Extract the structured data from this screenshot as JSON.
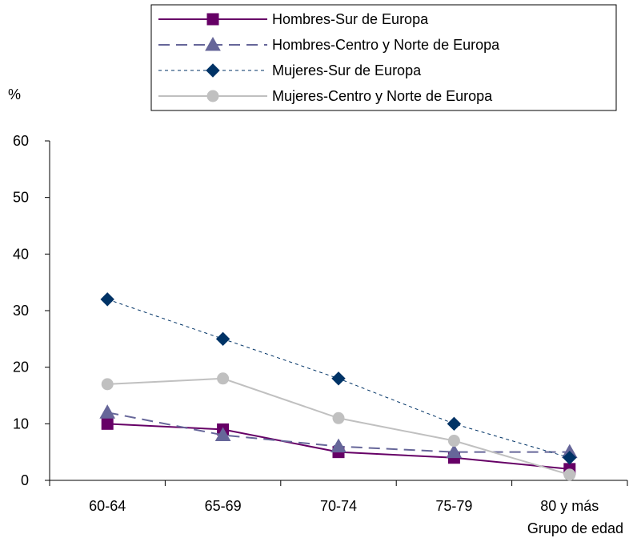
{
  "chart_data": {
    "type": "line",
    "title": "",
    "ylabel": "%",
    "xlabel": "Grupo de edad",
    "categories": [
      "60-64",
      "65-69",
      "70-74",
      "75-79",
      "80 y más"
    ],
    "ylim": [
      0,
      60
    ],
    "yticks": [
      0,
      10,
      20,
      30,
      40,
      50,
      60
    ],
    "grid": false,
    "legend_position": "top-right",
    "series": [
      {
        "name": "Hombres-Sur de Europa",
        "values": [
          10,
          9,
          5,
          4,
          2
        ],
        "color": "#660066",
        "marker": "square",
        "line": "solid"
      },
      {
        "name": "Hombres-Centro y Norte de Europa",
        "values": [
          12,
          8,
          6,
          5,
          5
        ],
        "color": "#666699",
        "marker": "triangle",
        "line": "dashed"
      },
      {
        "name": "Mujeres-Sur de Europa",
        "values": [
          32,
          25,
          18,
          10,
          4
        ],
        "color": "#003366",
        "marker": "diamond",
        "line": "dotted"
      },
      {
        "name": "Mujeres-Centro y Norte de Europa",
        "values": [
          17,
          18,
          11,
          7,
          1
        ],
        "color": "#c0c0c0",
        "marker": "circle",
        "line": "solid"
      }
    ]
  }
}
